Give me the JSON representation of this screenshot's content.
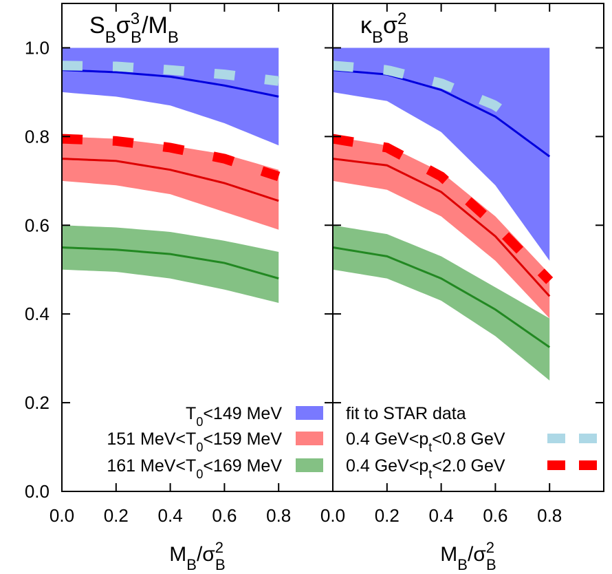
{
  "chart_data": {
    "type": "line",
    "x_range": [
      0.0,
      1.0
    ],
    "y_range": [
      0.0,
      1.1
    ],
    "y_ticks": [
      "0.0",
      "0.2",
      "0.4",
      "0.6",
      "0.8",
      "1.0"
    ],
    "x_ticks": [
      "0.0",
      "0.2",
      "0.4",
      "0.6",
      "0.8"
    ],
    "x_label_main": "M",
    "x_label_sub": "B",
    "x_label_sep": "/σ",
    "x_label_sub2": "B",
    "x_label_sup2": "2",
    "panels": [
      {
        "title_parts": {
          "a": "S",
          "a_sub": "B",
          "b": "σ",
          "b_sup": "3",
          "b_sub": "B",
          "c": "/M",
          "c_sub": "B"
        },
        "bands": [
          {
            "color": "#6666ff",
            "x": [
              0.0,
              0.2,
              0.4,
              0.6,
              0.8
            ],
            "lower": [
              0.9,
              0.89,
              0.87,
              0.83,
              0.78
            ],
            "upper": [
              1.0,
              1.0,
              1.0,
              1.0,
              1.0
            ]
          },
          {
            "color": "#ff6f6f",
            "x": [
              0.0,
              0.2,
              0.4,
              0.6,
              0.8
            ],
            "lower": [
              0.7,
              0.69,
              0.67,
              0.63,
              0.59
            ],
            "upper": [
              0.8,
              0.795,
              0.78,
              0.76,
              0.725
            ]
          },
          {
            "color": "#73b873",
            "x": [
              0.0,
              0.2,
              0.4,
              0.6,
              0.8
            ],
            "lower": [
              0.5,
              0.495,
              0.48,
              0.455,
              0.425
            ],
            "upper": [
              0.6,
              0.595,
              0.585,
              0.565,
              0.54
            ]
          }
        ],
        "lines": [
          {
            "color": "#0000dd",
            "x": [
              0.0,
              0.2,
              0.4,
              0.6,
              0.8
            ],
            "y": [
              0.95,
              0.945,
              0.935,
              0.915,
              0.89
            ]
          },
          {
            "color": "#dd0000",
            "x": [
              0.0,
              0.2,
              0.4,
              0.6,
              0.8
            ],
            "y": [
              0.75,
              0.745,
              0.725,
              0.695,
              0.655
            ]
          },
          {
            "color": "#228822",
            "x": [
              0.0,
              0.2,
              0.4,
              0.6,
              0.8
            ],
            "y": [
              0.55,
              0.545,
              0.535,
              0.515,
              0.48
            ]
          }
        ],
        "dashed": [
          {
            "color": "#add8e6",
            "x": [
              0.0,
              0.2,
              0.4,
              0.6,
              0.8
            ],
            "y": [
              0.96,
              0.958,
              0.95,
              0.94,
              0.925
            ]
          },
          {
            "color": "#ff0000",
            "x": [
              0.0,
              0.2,
              0.4,
              0.6,
              0.8
            ],
            "y": [
              0.795,
              0.79,
              0.775,
              0.75,
              0.71
            ]
          }
        ]
      },
      {
        "title_parts": {
          "a": "κ",
          "a_sub": "B",
          "b": "σ",
          "b_sup": "2",
          "b_sub": "B",
          "c": "",
          "c_sub": ""
        },
        "bands": [
          {
            "color": "#6666ff",
            "x": [
              0.0,
              0.2,
              0.4,
              0.6,
              0.8
            ],
            "lower": [
              0.9,
              0.88,
              0.81,
              0.69,
              0.52
            ],
            "upper": [
              1.0,
              1.0,
              1.0,
              1.0,
              1.0
            ]
          },
          {
            "color": "#ff6f6f",
            "x": [
              0.0,
              0.2,
              0.4,
              0.6,
              0.8
            ],
            "lower": [
              0.7,
              0.68,
              0.62,
              0.52,
              0.39
            ],
            "upper": [
              0.8,
              0.78,
              0.72,
              0.62,
              0.49
            ]
          },
          {
            "color": "#73b873",
            "x": [
              0.0,
              0.2,
              0.4,
              0.6,
              0.8
            ],
            "lower": [
              0.5,
              0.48,
              0.43,
              0.35,
              0.25
            ],
            "upper": [
              0.6,
              0.58,
              0.53,
              0.46,
              0.39
            ]
          }
        ],
        "lines": [
          {
            "color": "#0000dd",
            "x": [
              0.0,
              0.2,
              0.4,
              0.6,
              0.8
            ],
            "y": [
              0.95,
              0.94,
              0.905,
              0.845,
              0.755
            ]
          },
          {
            "color": "#dd0000",
            "x": [
              0.0,
              0.2,
              0.4,
              0.6,
              0.8
            ],
            "y": [
              0.75,
              0.735,
              0.675,
              0.575,
              0.44
            ]
          },
          {
            "color": "#228822",
            "x": [
              0.0,
              0.2,
              0.4,
              0.6,
              0.8
            ],
            "y": [
              0.55,
              0.53,
              0.48,
              0.41,
              0.325
            ]
          }
        ],
        "dashed": [
          {
            "color": "#add8e6",
            "x": [
              0.0,
              0.2,
              0.4,
              0.6,
              0.7
            ],
            "y": [
              0.96,
              0.95,
              0.92,
              0.87,
              0.825
            ]
          },
          {
            "color": "#ff0000",
            "x": [
              0.0,
              0.2,
              0.4,
              0.6,
              0.8
            ],
            "y": [
              0.795,
              0.775,
              0.71,
              0.6,
              0.475
            ]
          }
        ]
      }
    ],
    "legend": {
      "placement": "bottom",
      "left": [
        {
          "pre": "T",
          "sub": "0",
          "post": "<149 MeV",
          "color": "#6666ff"
        },
        {
          "pre": "151 MeV<T",
          "sub": "0",
          "post": "<159 MeV",
          "color": "#ff6f6f"
        },
        {
          "pre": "161 MeV<T",
          "sub": "0",
          "post": "<169 MeV",
          "color": "#73b873"
        }
      ],
      "right": [
        {
          "pre": "fit to STAR data",
          "sub": "",
          "post": "",
          "color": ""
        },
        {
          "pre": "0.4 GeV<p",
          "sub": "t",
          "post": "<0.8 GeV",
          "color": "#add8e6"
        },
        {
          "pre": "0.4 GeV<p",
          "sub": "t",
          "post": "<2.0 GeV",
          "color": "#ff0000"
        }
      ]
    }
  }
}
